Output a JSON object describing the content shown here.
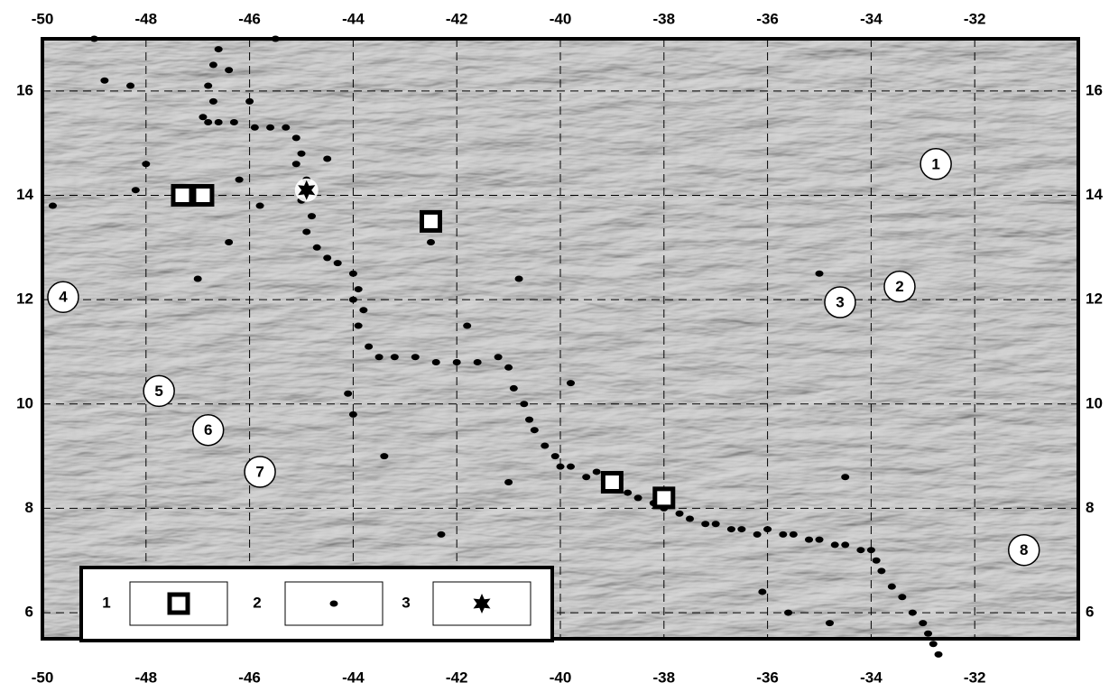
{
  "chart_data": {
    "type": "scatter",
    "xlim": [
      -50,
      -30
    ],
    "xticks": [
      -50,
      -48,
      -46,
      -44,
      -42,
      -40,
      -38,
      -36,
      -34,
      -32
    ],
    "ylim": [
      5.5,
      17
    ],
    "yticks": [
      6,
      8,
      10,
      12,
      14,
      16
    ],
    "grid": true,
    "color": "#000000",
    "series": [
      {
        "name": "1",
        "marker": "square",
        "x": [
          -47.3,
          -46.9,
          -42.5,
          -39,
          -38
        ],
        "y": [
          14,
          14,
          13.5,
          8.5,
          8.2
        ]
      },
      {
        "name": "2",
        "marker": "dot",
        "x": [
          -46.6,
          -46.7,
          -46.8,
          -46.7,
          -46.9,
          -46.8,
          -46.6,
          -46.3,
          -45.9,
          -45.6,
          -45.3,
          -45.1,
          -45,
          -45.1,
          -44.9,
          -45,
          -44.8,
          -44.9,
          -44.7,
          -44.5,
          -44.3,
          -44,
          -43.9,
          -44,
          -43.8,
          -43.9,
          -43.7,
          -43.5,
          -43.2,
          -42.8,
          -42.4,
          -42,
          -41.6,
          -41.2,
          -41,
          -40.9,
          -40.7,
          -40.6,
          -40.5,
          -40.3,
          -40.1,
          -40,
          -39.8,
          -39.5,
          -39.3,
          -39,
          -38.7,
          -38.5,
          -38.2,
          -38,
          -37.7,
          -37.5,
          -37.2,
          -37,
          -36.7,
          -36.5,
          -36.2,
          -36,
          -35.7,
          -35.5,
          -35.2,
          -35,
          -34.7,
          -34.5,
          -34.2,
          -34,
          -33.9,
          -33.8,
          -33.6,
          -33.4,
          -33.2,
          -33,
          -32.9,
          -32.8,
          -32.7,
          -49.8,
          -48.8,
          -48.3,
          -48,
          -48.2,
          -47,
          -46.4,
          -46,
          -44.5,
          -42.5,
          -40.8,
          -41.8,
          -44.1,
          -44,
          -43.4,
          -41,
          -42.3,
          -36.1,
          -35.6,
          -34.8,
          -34.5,
          -35,
          -39.8,
          -46.4,
          -49,
          -45.5,
          -45.8,
          -46.2
        ],
        "y": [
          16.8,
          16.5,
          16.1,
          15.8,
          15.5,
          15.4,
          15.4,
          15.4,
          15.3,
          15.3,
          15.3,
          15.1,
          14.8,
          14.6,
          14.3,
          13.9,
          13.6,
          13.3,
          13,
          12.8,
          12.7,
          12.5,
          12.2,
          12,
          11.8,
          11.5,
          11.1,
          10.9,
          10.9,
          10.9,
          10.8,
          10.8,
          10.8,
          10.9,
          10.7,
          10.3,
          10,
          9.7,
          9.5,
          9.2,
          9,
          8.8,
          8.8,
          8.6,
          8.7,
          8.4,
          8.3,
          8.2,
          8.1,
          8,
          7.9,
          7.8,
          7.7,
          7.7,
          7.6,
          7.6,
          7.5,
          7.6,
          7.5,
          7.5,
          7.4,
          7.4,
          7.3,
          7.3,
          7.2,
          7.2,
          7,
          6.8,
          6.5,
          6.3,
          6,
          5.8,
          5.6,
          5.4,
          5.2,
          13.8,
          16.2,
          16.1,
          14.6,
          14.1,
          12.4,
          13.1,
          15.8,
          14.7,
          13.1,
          12.4,
          11.5,
          10.2,
          9.8,
          9,
          8.5,
          7.5,
          6.4,
          6,
          5.8,
          8.6,
          12.5,
          10.4,
          16.4,
          17,
          17,
          13.8,
          14.3
        ]
      },
      {
        "name": "3",
        "marker": "star",
        "x": [
          -44.9
        ],
        "y": [
          14.1
        ]
      }
    ],
    "annotations": [
      "1",
      "2",
      "3",
      "4",
      "5",
      "6",
      "7",
      "8"
    ]
  }
}
